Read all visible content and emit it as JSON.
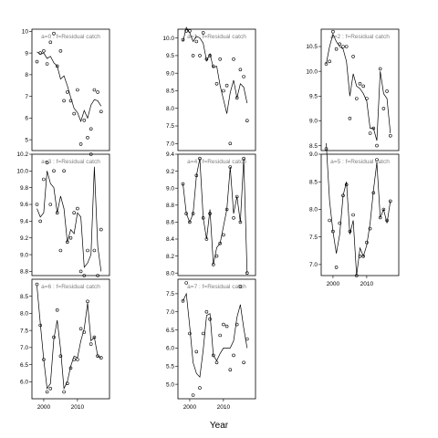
{
  "chart_data": {
    "type": "scatter",
    "xlabel": "Year",
    "panels": [
      {
        "label": "a=0 : f=Residual catch",
        "x": [
          1998,
          1999,
          2000,
          2001,
          2002,
          2003,
          2004,
          2005,
          2006,
          2007,
          2008,
          2009,
          2010,
          2011,
          2012,
          2013,
          2014,
          2015,
          2016,
          2017
        ],
        "points": [
          8.6,
          9.0,
          9.1,
          8.5,
          9.5,
          9.9,
          8.4,
          9.1,
          6.8,
          7.2,
          6.8,
          6.2,
          7.3,
          4.8,
          5.9,
          5.1,
          5.5,
          7.3,
          7.2,
          6.3
        ],
        "line": [
          9.05,
          8.95,
          9.0,
          8.75,
          8.85,
          8.55,
          8.4,
          7.8,
          7.95,
          7.5,
          6.95,
          6.45,
          6.25,
          5.85,
          6.35,
          6.0,
          6.6,
          6.85,
          6.8,
          6.55
        ],
        "ylim": [
          4.5,
          10.1
        ],
        "yticks": [
          5,
          6,
          7,
          8,
          9,
          10
        ]
      },
      {
        "label": "a=1 : f=Residual catch",
        "x": [
          1998,
          1999,
          2000,
          2001,
          2002,
          2003,
          2004,
          2005,
          2006,
          2007,
          2008,
          2009,
          2010,
          2011,
          2012,
          2013,
          2014,
          2015,
          2016,
          2017
        ],
        "points": [
          9.95,
          10.2,
          10.2,
          9.5,
          9.9,
          9.5,
          10.15,
          9.4,
          9.5,
          9.2,
          8.7,
          9.4,
          8.5,
          8.65,
          7.0,
          9.4,
          8.3,
          9.1,
          8.9,
          7.65
        ],
        "line": [
          9.9,
          10.3,
          10.15,
          9.9,
          10.05,
          10.0,
          9.85,
          9.35,
          9.55,
          9.15,
          9.2,
          8.65,
          8.25,
          7.85,
          8.45,
          8.8,
          8.3,
          8.7,
          8.6,
          8.15
        ],
        "ylim": [
          6.8,
          10.25
        ],
        "yticks": [
          7.0,
          7.5,
          8.0,
          8.5,
          9.0,
          9.5,
          10.0
        ]
      },
      {
        "label": "a=2 : f=Residual catch",
        "x": [
          1998,
          1999,
          2000,
          2001,
          2002,
          2003,
          2004,
          2005,
          2006,
          2007,
          2008,
          2009,
          2010,
          2011,
          2012,
          2013,
          2014,
          2015,
          2016,
          2017
        ],
        "points": [
          10.15,
          10.2,
          10.8,
          10.45,
          10.55,
          10.5,
          10.5,
          9.05,
          10.3,
          9.45,
          9.75,
          9.7,
          9.45,
          8.75,
          8.85,
          8.5,
          10.05,
          9.25,
          9.6,
          8.7
        ],
        "line": [
          10.15,
          10.5,
          10.75,
          10.6,
          10.5,
          10.45,
          10.2,
          9.5,
          9.95,
          9.7,
          9.65,
          9.55,
          9.4,
          8.85,
          8.85,
          8.6,
          10.0,
          9.55,
          9.45,
          8.75
        ],
        "ylim": [
          8.4,
          10.85
        ],
        "yticks": [
          8.5,
          9.0,
          9.5,
          10.0,
          10.5
        ]
      },
      {
        "label": "a=3 : f=Residual catch",
        "x": [
          1998,
          1999,
          2000,
          2001,
          2002,
          2003,
          2004,
          2005,
          2006,
          2007,
          2008,
          2009,
          2010,
          2011,
          2012,
          2013,
          2014,
          2015,
          2016,
          2017
        ],
        "points": [
          9.6,
          9.4,
          9.9,
          10.1,
          9.6,
          10.0,
          9.5,
          9.05,
          10.0,
          9.15,
          9.2,
          9.5,
          9.55,
          8.8,
          8.75,
          9.05,
          10.2,
          9.05,
          8.75,
          9.3
        ],
        "line": [
          9.55,
          9.45,
          9.5,
          10.0,
          9.85,
          9.8,
          9.5,
          9.7,
          9.55,
          9.15,
          9.3,
          9.25,
          9.5,
          9.45,
          8.85,
          8.9,
          9.0,
          10.05,
          9.1,
          8.8
        ],
        "ylim": [
          8.75,
          10.2
        ],
        "yticks": [
          8.8,
          9.0,
          9.2,
          9.4,
          9.6,
          9.8,
          10.0,
          10.2
        ]
      },
      {
        "label": "a=4 : f=Residual catch",
        "x": [
          1998,
          1999,
          2000,
          2001,
          2002,
          2003,
          2004,
          2005,
          2006,
          2007,
          2008,
          2009,
          2010,
          2011,
          2012,
          2013,
          2014,
          2015,
          2016,
          2017
        ],
        "points": [
          9.05,
          8.7,
          8.6,
          8.7,
          9.15,
          9.35,
          8.65,
          8.4,
          8.7,
          8.1,
          8.2,
          8.35,
          8.45,
          8.75,
          9.25,
          8.65,
          8.9,
          8.6,
          9.35,
          8.0
        ],
        "line": [
          9.05,
          8.7,
          8.6,
          8.7,
          9.15,
          9.35,
          8.65,
          8.4,
          8.75,
          8.1,
          8.3,
          8.35,
          8.55,
          8.75,
          9.25,
          8.7,
          8.9,
          8.6,
          9.35,
          8.0
        ],
        "ylim": [
          7.97,
          9.4
        ],
        "yticks": [
          8.0,
          8.2,
          8.4,
          8.6,
          8.8,
          9.0,
          9.2,
          9.4
        ]
      },
      {
        "label": "a=5 : f=Residual catch",
        "x": [
          1998,
          1999,
          2000,
          2001,
          2002,
          2003,
          2004,
          2005,
          2006,
          2007,
          2008,
          2009,
          2010,
          2011,
          2012,
          2013,
          2014,
          2015,
          2016,
          2017
        ],
        "points": [
          9.1,
          7.8,
          7.6,
          6.95,
          7.75,
          8.25,
          8.45,
          7.6,
          7.9,
          6.8,
          7.15,
          7.15,
          7.4,
          7.65,
          8.3,
          8.9,
          7.85,
          8.0,
          7.8,
          8.15
        ],
        "line": [
          9.2,
          8.15,
          7.6,
          7.2,
          7.55,
          8.25,
          8.5,
          7.55,
          7.8,
          6.8,
          7.3,
          7.15,
          7.35,
          7.75,
          8.35,
          8.85,
          7.85,
          8.0,
          7.75,
          8.15
        ],
        "ylim": [
          6.8,
          9.0
        ],
        "yticks": [
          7.0,
          7.5,
          8.0,
          8.5,
          9.0
        ]
      },
      {
        "label": "a=6 : f=Residual catch",
        "x": [
          1998,
          1999,
          2000,
          2001,
          2002,
          2003,
          2004,
          2005,
          2006,
          2007,
          2008,
          2009,
          2010,
          2011,
          2012,
          2013,
          2014,
          2015,
          2016,
          2017
        ],
        "points": [
          8.85,
          7.65,
          6.65,
          5.7,
          5.8,
          7.3,
          8.1,
          6.75,
          5.7,
          5.95,
          6.4,
          6.65,
          6.65,
          7.55,
          7.45,
          8.35,
          7.1,
          7.3,
          6.75,
          6.7
        ],
        "line": [
          8.8,
          7.7,
          6.65,
          5.8,
          5.95,
          7.25,
          7.8,
          6.95,
          5.8,
          6.0,
          6.45,
          6.75,
          6.7,
          7.2,
          7.55,
          8.3,
          7.2,
          7.3,
          6.75,
          6.7
        ],
        "ylim": [
          5.5,
          9.0
        ],
        "yticks": [
          6.0,
          6.5,
          7.0,
          7.5,
          8.0,
          8.5
        ]
      },
      {
        "label": "a=7 : f=Residual catch",
        "x": [
          1998,
          1999,
          2000,
          2001,
          2002,
          2003,
          2004,
          2005,
          2006,
          2007,
          2008,
          2009,
          2010,
          2011,
          2012,
          2013,
          2014,
          2015,
          2016,
          2017
        ],
        "points": [
          7.3,
          7.8,
          6.4,
          4.7,
          5.9,
          4.9,
          6.4,
          7.0,
          6.8,
          5.8,
          5.6,
          6.35,
          6.65,
          6.6,
          5.4,
          5.8,
          6.65,
          7.7,
          5.6,
          6.25
        ],
        "line": [
          7.3,
          7.5,
          6.6,
          5.6,
          5.3,
          5.2,
          5.95,
          6.9,
          6.95,
          5.8,
          5.65,
          5.85,
          6.0,
          6.0,
          6.0,
          6.2,
          6.85,
          7.2,
          6.55,
          6.0
        ],
        "ylim": [
          4.6,
          7.9
        ],
        "yticks": [
          5.0,
          5.5,
          6.0,
          6.5,
          7.0,
          7.5
        ]
      }
    ],
    "xlim": [
      1996.5,
      2019.5
    ],
    "xticks": [
      2000,
      2010
    ],
    "layout_order": [
      "a=0",
      "a=3",
      "a=6",
      "a=1",
      "a=4",
      "a=7",
      "a=2",
      "a=5"
    ]
  }
}
